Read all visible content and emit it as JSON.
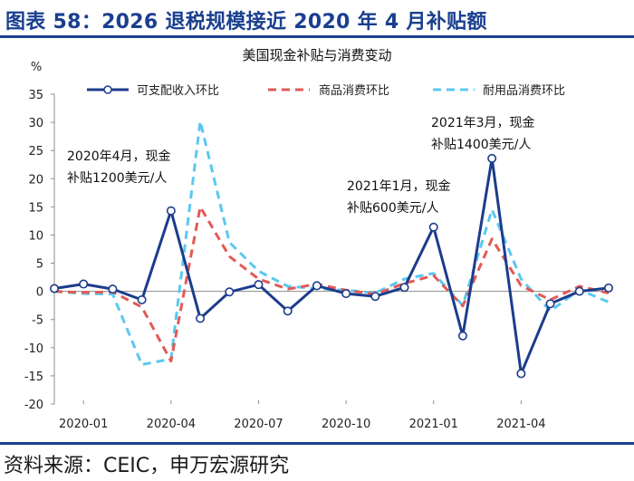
{
  "header": {
    "title": "图表 58：2026 退税规模接近 2020 年 4 月补贴额"
  },
  "footer": {
    "source": "资料来源：CEIC，申万宏源研究"
  },
  "colors": {
    "brand": "#1a3f8f",
    "series1": "#1c3c8c",
    "series2": "#e15a55",
    "series3": "#5bc8f0"
  },
  "chart_data": {
    "type": "line",
    "title": "美国现金补贴与消费变动",
    "ylabel": "%",
    "ylim": [
      -20,
      35
    ],
    "yticks": [
      35,
      30,
      25,
      20,
      15,
      10,
      5,
      0,
      -5,
      -10,
      -15,
      -20
    ],
    "x": [
      "2019-12",
      "2020-01",
      "2020-02",
      "2020-03",
      "2020-04",
      "2020-05",
      "2020-06",
      "2020-07",
      "2020-08",
      "2020-09",
      "2020-10",
      "2020-11",
      "2020-12",
      "2021-01",
      "2021-02",
      "2021-03",
      "2021-04",
      "2021-05",
      "2021-06",
      "2021-07"
    ],
    "xtick_labels": [
      "2020-01",
      "2020-04",
      "2020-07",
      "2020-10",
      "2021-01",
      "2021-04"
    ],
    "xtick_positions": [
      "2020-01",
      "2020-04",
      "2020-07",
      "2020-10",
      "2021-01",
      "2021-04"
    ],
    "grid": false,
    "legend_position": "top",
    "series": [
      {
        "name": "可支配收入环比",
        "style": "solid-marker",
        "values": [
          0.5,
          1.3,
          0.4,
          -1.5,
          14.3,
          -4.8,
          -0.1,
          1.2,
          -3.5,
          1.0,
          -0.4,
          -0.9,
          0.7,
          11.4,
          -7.9,
          23.6,
          -14.6,
          -2.2,
          0.0,
          0.6
        ]
      },
      {
        "name": "商品消费环比",
        "style": "dashed",
        "values": [
          0.0,
          -0.2,
          -0.1,
          -2.8,
          -12.4,
          15.0,
          6.2,
          2.2,
          0.4,
          1.3,
          0.2,
          -0.5,
          1.4,
          2.8,
          -2.6,
          9.3,
          1.0,
          -1.5,
          0.9,
          -0.3
        ]
      },
      {
        "name": "耐用品消费环比",
        "style": "dashed",
        "values": [
          0.0,
          -0.4,
          -0.5,
          -13.0,
          -12.0,
          30.2,
          8.7,
          3.6,
          0.9,
          0.5,
          0.2,
          -0.3,
          2.2,
          3.2,
          -2.5,
          14.5,
          2.2,
          -3.5,
          0.3,
          -1.9
        ]
      }
    ],
    "annotations": [
      {
        "lines": [
          "2020年4月，现金",
          "补贴1200美元/人"
        ]
      },
      {
        "lines": [
          "2021年1月，现金",
          "补贴600美元/人"
        ]
      },
      {
        "lines": [
          "2021年3月，现金",
          "补贴1400美元/人"
        ]
      }
    ]
  }
}
